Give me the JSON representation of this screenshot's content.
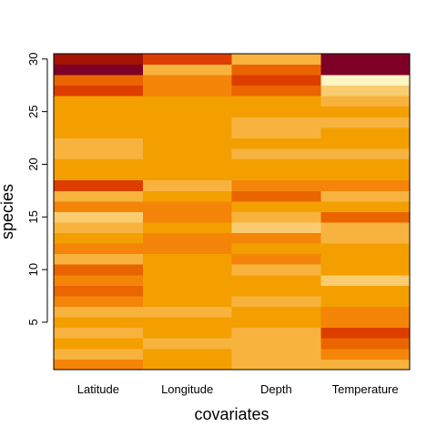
{
  "chart_data": {
    "type": "heatmap",
    "title": "",
    "xlabel": "covariates",
    "ylabel": "species",
    "categories": [
      "Latitude",
      "Longitude",
      "Depth",
      "Temperature"
    ],
    "y_range": [
      0.5,
      30.5
    ],
    "y_ticks": [
      5,
      10,
      15,
      20,
      25,
      30
    ],
    "grid": false,
    "legend": "none",
    "palette": {
      "L0": "#7f0026",
      "L1": "#a31403",
      "L2": "#dd3e00",
      "L3": "#ea6500",
      "L4": "#f48508",
      "L5": "#f49f00",
      "L6": "#f7b33e",
      "L7": "#f9cd6f",
      "L8": "#fdf5c2"
    },
    "rows": [
      {
        "species": 1,
        "levels": [
          "L4",
          "L5",
          "L6",
          "L6"
        ]
      },
      {
        "species": 2,
        "levels": [
          "L6",
          "L5",
          "L6",
          "L4"
        ]
      },
      {
        "species": 3,
        "levels": [
          "L5",
          "L6",
          "L6",
          "L3"
        ]
      },
      {
        "species": 4,
        "levels": [
          "L6",
          "L5",
          "L6",
          "L2"
        ]
      },
      {
        "species": 5,
        "levels": [
          "L5",
          "L5",
          "L5",
          "L4"
        ]
      },
      {
        "species": 6,
        "levels": [
          "L6",
          "L6",
          "L5",
          "L4"
        ]
      },
      {
        "species": 7,
        "levels": [
          "L4",
          "L5",
          "L6",
          "L5"
        ]
      },
      {
        "species": 8,
        "levels": [
          "L3",
          "L5",
          "L5",
          "L5"
        ]
      },
      {
        "species": 9,
        "levels": [
          "L4",
          "L5",
          "L5",
          "L7"
        ]
      },
      {
        "species": 10,
        "levels": [
          "L3",
          "L5",
          "L6",
          "L5"
        ]
      },
      {
        "species": 11,
        "levels": [
          "L6",
          "L5",
          "L4",
          "L5"
        ]
      },
      {
        "species": 12,
        "levels": [
          "L4",
          "L4",
          "L5",
          "L5"
        ]
      },
      {
        "species": 13,
        "levels": [
          "L5",
          "L4",
          "L4",
          "L6"
        ]
      },
      {
        "species": 14,
        "levels": [
          "L6",
          "L5",
          "L7",
          "L6"
        ]
      },
      {
        "species": 15,
        "levels": [
          "L7",
          "L4",
          "L6",
          "L3"
        ]
      },
      {
        "species": 16,
        "levels": [
          "L4",
          "L4",
          "L5",
          "L5"
        ]
      },
      {
        "species": 17,
        "levels": [
          "L6",
          "L5",
          "L3",
          "L6"
        ]
      },
      {
        "species": 18,
        "levels": [
          "L2",
          "L6",
          "L4",
          "L4"
        ]
      },
      {
        "species": 19,
        "levels": [
          "L5",
          "L5",
          "L5",
          "L5"
        ]
      },
      {
        "species": 20,
        "levels": [
          "L5",
          "L5",
          "L5",
          "L5"
        ]
      },
      {
        "species": 21,
        "levels": [
          "L6",
          "L5",
          "L6",
          "L6"
        ]
      },
      {
        "species": 22,
        "levels": [
          "L6",
          "L5",
          "L5",
          "L5"
        ]
      },
      {
        "species": 23,
        "levels": [
          "L5",
          "L5",
          "L6",
          "L5"
        ]
      },
      {
        "species": 24,
        "levels": [
          "L5",
          "L5",
          "L6",
          "L6"
        ]
      },
      {
        "species": 25,
        "levels": [
          "L5",
          "L5",
          "L5",
          "L5"
        ]
      },
      {
        "species": 26,
        "levels": [
          "L5",
          "L5",
          "L5",
          "L6"
        ]
      },
      {
        "species": 27,
        "levels": [
          "L2",
          "L4",
          "L3",
          "L7"
        ]
      },
      {
        "species": 28,
        "levels": [
          "L3",
          "L4",
          "L2",
          "L8"
        ]
      },
      {
        "species": 29,
        "levels": [
          "L0",
          "L6",
          "L3",
          "L0"
        ]
      },
      {
        "species": 30,
        "levels": [
          "L1",
          "L2",
          "L6",
          "L0"
        ]
      }
    ]
  }
}
